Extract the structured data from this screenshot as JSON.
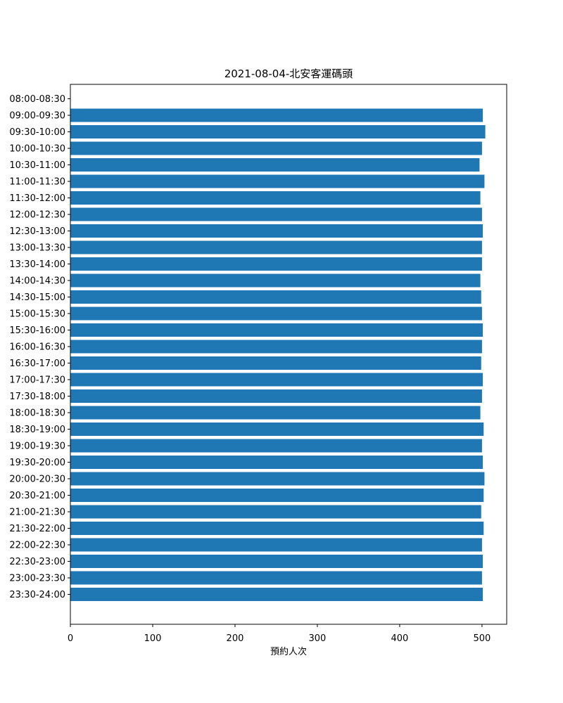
{
  "chart_data": {
    "type": "bar",
    "orientation": "horizontal",
    "title": "2021-08-04-北安客運碼頭",
    "xlabel": "預約人次",
    "ylabel": "",
    "xlim": [
      0,
      530
    ],
    "xticks": [
      "0",
      "100",
      "200",
      "300",
      "400",
      "500"
    ],
    "categories": [
      "08:00-08:30",
      "09:00-09:30",
      "09:30-10:00",
      "10:00-10:30",
      "10:30-11:00",
      "11:00-11:30",
      "11:30-12:00",
      "12:00-12:30",
      "12:30-13:00",
      "13:00-13:30",
      "13:30-14:00",
      "14:00-14:30",
      "14:30-15:00",
      "15:00-15:30",
      "15:30-16:00",
      "16:00-16:30",
      "16:30-17:00",
      "17:00-17:30",
      "17:30-18:00",
      "18:00-18:30",
      "18:30-19:00",
      "19:00-19:30",
      "19:30-20:00",
      "20:00-20:30",
      "20:30-21:00",
      "21:00-21:30",
      "21:30-22:00",
      "22:00-22:30",
      "22:30-23:00",
      "23:00-23:30",
      "23:30-24:00"
    ],
    "values": [
      0,
      501,
      504,
      500,
      497,
      503,
      498,
      500,
      501,
      500,
      500,
      498,
      499,
      500,
      501,
      500,
      499,
      501,
      500,
      498,
      502,
      500,
      501,
      503,
      502,
      499,
      502,
      500,
      501,
      500,
      501
    ],
    "bar_color": "#1f77b4",
    "grid": false
  }
}
